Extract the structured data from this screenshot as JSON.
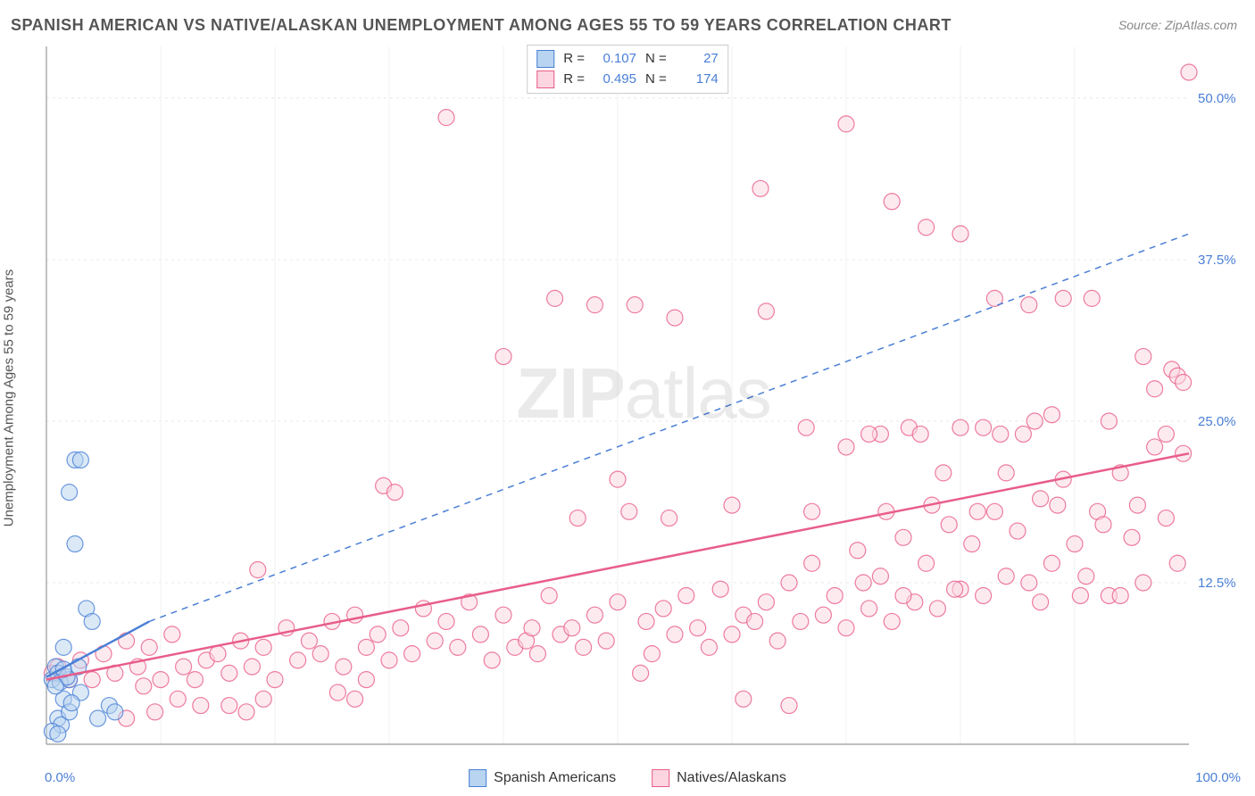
{
  "header": {
    "title": "SPANISH AMERICAN VS NATIVE/ALASKAN UNEMPLOYMENT AMONG AGES 55 TO 59 YEARS CORRELATION CHART",
    "source": "Source: ZipAtlas.com"
  },
  "ylabel": "Unemployment Among Ages 55 to 59 years",
  "watermark": {
    "part1": "ZIP",
    "part2": "atlas"
  },
  "chart": {
    "type": "scatter",
    "xlim": [
      0,
      100
    ],
    "ylim": [
      0,
      54
    ],
    "x_ticks": [
      {
        "v": 0,
        "l": "0.0%"
      },
      {
        "v": 100,
        "l": "100.0%"
      }
    ],
    "y_ticks": [
      {
        "v": 12.5,
        "l": "12.5%"
      },
      {
        "v": 25,
        "l": "25.0%"
      },
      {
        "v": 37.5,
        "l": "37.5%"
      },
      {
        "v": 50,
        "l": "50.0%"
      }
    ],
    "grid_color": "#e8e8e8",
    "axis_color": "#999999",
    "background_color": "#ffffff",
    "marker_radius": 9,
    "marker_opacity": 0.5,
    "marker_stroke_width": 1.2,
    "series": [
      {
        "name": "Spanish Americans",
        "color_fill": "#b8d4f0",
        "color_stroke": "#4a7fd6",
        "R": "0.107",
        "N": "27",
        "trend": {
          "x1": 0,
          "y1": 5.2,
          "x2": 9,
          "y2": 9.5,
          "dash_x2": 100,
          "dash_y2": 39.5,
          "width": 2.5
        },
        "points": [
          [
            0.5,
            5.0
          ],
          [
            0.8,
            6.0
          ],
          [
            1.0,
            5.5
          ],
          [
            1.2,
            4.8
          ],
          [
            1.5,
            7.5
          ],
          [
            1.0,
            2.0
          ],
          [
            1.3,
            1.5
          ],
          [
            2.0,
            5.0
          ],
          [
            2.5,
            22.0
          ],
          [
            3.0,
            22.0
          ],
          [
            2.0,
            19.5
          ],
          [
            3.5,
            10.5
          ],
          [
            4.0,
            9.5
          ],
          [
            2.5,
            15.5
          ],
          [
            1.5,
            3.5
          ],
          [
            5.5,
            3.0
          ],
          [
            6.0,
            2.5
          ],
          [
            4.5,
            2.0
          ],
          [
            0.5,
            1.0
          ],
          [
            1.0,
            0.8
          ],
          [
            2.0,
            2.5
          ],
          [
            3.0,
            4.0
          ],
          [
            1.8,
            5.2
          ],
          [
            2.8,
            6.0
          ],
          [
            0.8,
            4.5
          ],
          [
            1.5,
            5.8
          ],
          [
            2.2,
            3.2
          ]
        ]
      },
      {
        "name": "Natives/Alaskans",
        "color_fill": "#fcd5e0",
        "color_stroke": "#e85d8a",
        "R": "0.495",
        "N": "174",
        "trend": {
          "x1": 0,
          "y1": 5.0,
          "x2": 100,
          "y2": 22.5,
          "width": 2.5
        },
        "points": [
          [
            0.5,
            5.5
          ],
          [
            1.0,
            6.0
          ],
          [
            2.0,
            5.0
          ],
          [
            3.0,
            6.5
          ],
          [
            4.0,
            5.0
          ],
          [
            5.0,
            7.0
          ],
          [
            6.0,
            5.5
          ],
          [
            7.0,
            8.0
          ],
          [
            8.0,
            6.0
          ],
          [
            8.5,
            4.5
          ],
          [
            9.0,
            7.5
          ],
          [
            10.0,
            5.0
          ],
          [
            11.0,
            8.5
          ],
          [
            12.0,
            6.0
          ],
          [
            13.0,
            5.0
          ],
          [
            14.0,
            6.5
          ],
          [
            7.0,
            2.0
          ],
          [
            9.5,
            2.5
          ],
          [
            11.5,
            3.5
          ],
          [
            13.5,
            3.0
          ],
          [
            15.0,
            7.0
          ],
          [
            16.0,
            5.5
          ],
          [
            17.0,
            8.0
          ],
          [
            18.0,
            6.0
          ],
          [
            19.0,
            7.5
          ],
          [
            20.0,
            5.0
          ],
          [
            21.0,
            9.0
          ],
          [
            22.0,
            6.5
          ],
          [
            16.0,
            3.0
          ],
          [
            17.5,
            2.5
          ],
          [
            19.0,
            3.5
          ],
          [
            23.0,
            8.0
          ],
          [
            24.0,
            7.0
          ],
          [
            25.0,
            9.5
          ],
          [
            18.5,
            13.5
          ],
          [
            26.0,
            6.0
          ],
          [
            27.0,
            10.0
          ],
          [
            28.0,
            7.5
          ],
          [
            29.0,
            8.5
          ],
          [
            30.0,
            6.5
          ],
          [
            25.5,
            4.0
          ],
          [
            27.0,
            3.5
          ],
          [
            31.0,
            9.0
          ],
          [
            32.0,
            7.0
          ],
          [
            33.0,
            10.5
          ],
          [
            34.0,
            8.0
          ],
          [
            29.5,
            20.0
          ],
          [
            35.0,
            9.5
          ],
          [
            28.0,
            5.0
          ],
          [
            36.0,
            7.5
          ],
          [
            37.0,
            11.0
          ],
          [
            38.0,
            8.5
          ],
          [
            39.0,
            6.5
          ],
          [
            40.0,
            10.0
          ],
          [
            30.5,
            19.5
          ],
          [
            41.0,
            7.5
          ],
          [
            42.0,
            8.0
          ],
          [
            42.5,
            9.0
          ],
          [
            43.0,
            7.0
          ],
          [
            44.0,
            11.5
          ],
          [
            45.0,
            8.5
          ],
          [
            35.0,
            48.5
          ],
          [
            40.0,
            30.0
          ],
          [
            46.0,
            9.0
          ],
          [
            46.5,
            17.5
          ],
          [
            47.0,
            7.5
          ],
          [
            48.0,
            10.0
          ],
          [
            49.0,
            8.0
          ],
          [
            50.0,
            11.0
          ],
          [
            44.5,
            34.5
          ],
          [
            51.0,
            18.0
          ],
          [
            48.0,
            34.0
          ],
          [
            52.0,
            5.5
          ],
          [
            52.5,
            9.5
          ],
          [
            53.0,
            7.0
          ],
          [
            54.0,
            10.5
          ],
          [
            50.0,
            20.5
          ],
          [
            55.0,
            8.5
          ],
          [
            51.5,
            34.0
          ],
          [
            56.0,
            11.5
          ],
          [
            57.0,
            9.0
          ],
          [
            58.0,
            7.5
          ],
          [
            59.0,
            12.0
          ],
          [
            54.5,
            17.5
          ],
          [
            60.0,
            8.5
          ],
          [
            61.0,
            10.0
          ],
          [
            62.0,
            9.5
          ],
          [
            63.0,
            11.0
          ],
          [
            55.0,
            33.0
          ],
          [
            64.0,
            8.0
          ],
          [
            65.0,
            12.5
          ],
          [
            66.0,
            9.5
          ],
          [
            67.0,
            14.0
          ],
          [
            61.0,
            3.5
          ],
          [
            68.0,
            10.0
          ],
          [
            62.5,
            43.0
          ],
          [
            69.0,
            11.5
          ],
          [
            70.0,
            9.0
          ],
          [
            60.0,
            18.5
          ],
          [
            71.0,
            15.0
          ],
          [
            63.0,
            33.5
          ],
          [
            72.0,
            10.5
          ],
          [
            73.0,
            13.0
          ],
          [
            67.0,
            18.0
          ],
          [
            74.0,
            9.5
          ],
          [
            75.0,
            16.0
          ],
          [
            65.0,
            3.0
          ],
          [
            76.0,
            11.0
          ],
          [
            70.0,
            23.0
          ],
          [
            77.0,
            14.0
          ],
          [
            70.0,
            48.0
          ],
          [
            78.0,
            10.5
          ],
          [
            79.0,
            17.0
          ],
          [
            73.0,
            24.0
          ],
          [
            80.0,
            12.0
          ],
          [
            81.0,
            15.5
          ],
          [
            74.0,
            42.0
          ],
          [
            82.0,
            11.5
          ],
          [
            75.5,
            24.5
          ],
          [
            83.0,
            18.0
          ],
          [
            77.0,
            40.0
          ],
          [
            84.0,
            13.0
          ],
          [
            85.0,
            16.5
          ],
          [
            80.0,
            24.5
          ],
          [
            80.0,
            39.5
          ],
          [
            86.0,
            12.5
          ],
          [
            87.0,
            19.0
          ],
          [
            83.0,
            34.5
          ],
          [
            88.0,
            14.0
          ],
          [
            89.0,
            20.5
          ],
          [
            83.5,
            24.0
          ],
          [
            90.0,
            15.5
          ],
          [
            91.0,
            13.0
          ],
          [
            86.0,
            34.0
          ],
          [
            92.0,
            18.0
          ],
          [
            86.5,
            25.0
          ],
          [
            93.0,
            11.5
          ],
          [
            94.0,
            21.0
          ],
          [
            89.0,
            34.5
          ],
          [
            95.0,
            16.0
          ],
          [
            88.0,
            25.5
          ],
          [
            96.0,
            12.5
          ],
          [
            97.0,
            23.0
          ],
          [
            91.5,
            34.5
          ],
          [
            98.0,
            17.5
          ],
          [
            99.0,
            14.0
          ],
          [
            93.0,
            25.0
          ],
          [
            99.5,
            22.5
          ],
          [
            96.0,
            30.0
          ],
          [
            98.5,
            29.0
          ],
          [
            98.0,
            24.0
          ],
          [
            99.0,
            28.5
          ],
          [
            99.5,
            28.0
          ],
          [
            97.0,
            27.5
          ],
          [
            95.5,
            18.5
          ],
          [
            94.0,
            11.5
          ],
          [
            92.5,
            17.0
          ],
          [
            90.5,
            11.5
          ],
          [
            88.5,
            18.5
          ],
          [
            87.0,
            11.0
          ],
          [
            85.5,
            24.0
          ],
          [
            84.0,
            21.0
          ],
          [
            82.0,
            24.5
          ],
          [
            81.5,
            18.0
          ],
          [
            79.5,
            12.0
          ],
          [
            78.5,
            21.0
          ],
          [
            77.5,
            18.5
          ],
          [
            76.5,
            24.0
          ],
          [
            75.0,
            11.5
          ],
          [
            73.5,
            18.0
          ],
          [
            72.0,
            24.0
          ],
          [
            71.5,
            12.5
          ],
          [
            100.0,
            52.0
          ],
          [
            66.5,
            24.5
          ]
        ]
      }
    ]
  },
  "legend_top": {
    "rows": [
      {
        "swatch_fill": "#b8d4f0",
        "swatch_stroke": "#4a7fd6",
        "R_label": "R =",
        "R": "0.107",
        "N_label": "N =",
        "N": "27"
      },
      {
        "swatch_fill": "#fcd5e0",
        "swatch_stroke": "#e85d8a",
        "R_label": "R =",
        "R": "0.495",
        "N_label": "N =",
        "N": "174"
      }
    ]
  },
  "legend_bottom": {
    "items": [
      {
        "swatch_fill": "#b8d4f0",
        "swatch_stroke": "#4a7fd6",
        "label": "Spanish Americans"
      },
      {
        "swatch_fill": "#fcd5e0",
        "swatch_stroke": "#e85d8a",
        "label": "Natives/Alaskans"
      }
    ]
  }
}
